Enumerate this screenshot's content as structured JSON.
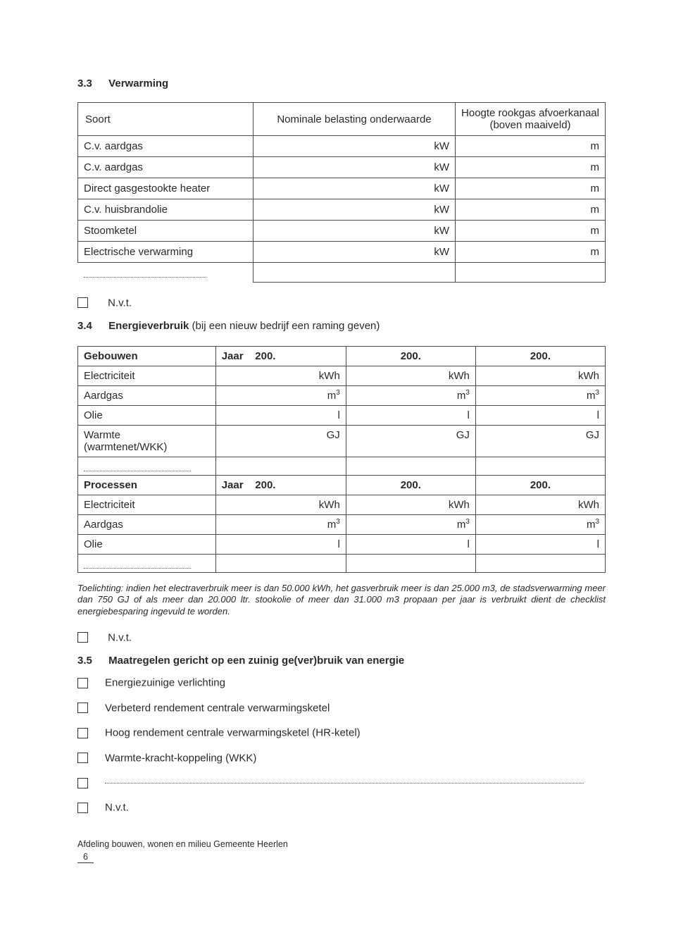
{
  "section33": {
    "number": "3.3",
    "title": "Verwarming",
    "headers": {
      "soort": "Soort",
      "nominale": "Nominale belasting onderwaarde",
      "hoogte": "Hoogte rookgas afvoerkanaal (boven maaiveld)"
    },
    "rows": [
      {
        "label": "C.v. aardgas",
        "u1": "kW",
        "u2": "m"
      },
      {
        "label": "C.v. aardgas",
        "u1": "kW",
        "u2": "m"
      },
      {
        "label": "Direct gasgestookte heater",
        "u1": "kW",
        "u2": "m"
      },
      {
        "label": "C.v. huisbrandolie",
        "u1": "kW",
        "u2": "m"
      },
      {
        "label": "Stoomketel",
        "u1": "kW",
        "u2": "m"
      },
      {
        "label": "Electrische verwarming",
        "u1": "kW",
        "u2": "m"
      }
    ],
    "nvt": "N.v.t."
  },
  "section34": {
    "number": "3.4",
    "title_bold": "Energieverbruik",
    "title_rest": " (bij een nieuw bedrijf een raming geven)",
    "hdr": {
      "gebouwen": "Gebouwen",
      "processen": "Processen",
      "jaar": "Jaar",
      "y": "200."
    },
    "rows_geb": [
      {
        "label": "Electriciteit",
        "u": "kWh"
      },
      {
        "label": "Aardgas",
        "u": "m³"
      },
      {
        "label": "Olie",
        "u": "l"
      },
      {
        "label": "Warmte (warmtenet/WKK)",
        "u": "GJ"
      }
    ],
    "rows_proc": [
      {
        "label": "Electriciteit",
        "u": "kWh"
      },
      {
        "label": "Aardgas",
        "u": "m³"
      },
      {
        "label": "Olie",
        "u": "l"
      }
    ],
    "note": "Toelichting: indien het electraverbruik meer is dan 50.000 kWh, het gasverbruik meer is dan 25.000 m3, de stadsverwarming meer dan 750 GJ of als meer dan 20.000 ltr. stookolie of meer dan 31.000 m3 propaan per jaar is verbruikt dient de checklist energiebesparing ingevuld te worden.",
    "nvt": "N.v.t."
  },
  "section35": {
    "number": "3.5",
    "title": "Maatregelen gericht op een zuinig ge(ver)bruik van energie",
    "items": [
      "Energiezuinige verlichting",
      "Verbeterd rendement centrale verwarmingsketel",
      "Hoog rendement centrale verwarmingsketel (HR-ketel)",
      "Warmte-kracht-koppeling (WKK)"
    ],
    "nvt": "N.v.t."
  },
  "footer": {
    "text": "Afdeling bouwen, wonen en milieu Gemeente Heerlen",
    "page": "6"
  },
  "units": {
    "m3": "m",
    "m3sup": "3"
  }
}
